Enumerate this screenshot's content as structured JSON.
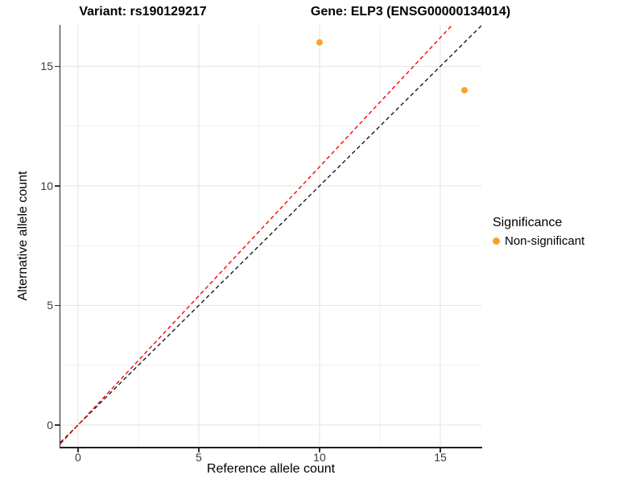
{
  "header": {
    "variant_title": "Variant: rs190129217",
    "gene_title": "Gene: ELP3 (ENSG00000134014)"
  },
  "chart_data": {
    "type": "scatter",
    "x": {
      "label": "Reference allele count",
      "ticks": [
        0,
        5,
        10,
        15
      ],
      "minor_ticks": [
        2.5,
        7.5,
        12.5
      ],
      "range": [
        -0.73,
        16.7
      ]
    },
    "y": {
      "label": "Alternative allele count",
      "ticks": [
        0,
        5,
        10,
        15
      ],
      "minor_ticks": [
        2.5,
        7.5,
        12.5
      ],
      "range": [
        -0.91,
        16.73
      ]
    },
    "points": [
      {
        "x": 10,
        "y": 16,
        "significance": "Non-significant"
      },
      {
        "x": 16,
        "y": 14,
        "significance": "Non-significant"
      }
    ],
    "reference_lines": [
      {
        "name": "identity-line",
        "slope": 1.0,
        "intercept": 0,
        "color": "#1a1a1a",
        "style": "dashed"
      },
      {
        "name": "fitted-line",
        "slope": 1.08,
        "intercept": 0,
        "color": "#ff0000",
        "style": "dashed"
      }
    ],
    "point_color": "#F8A225",
    "point_radius": 4,
    "grid": {
      "major_color": "#e3e3e3",
      "minor_color": "#f0f0f0"
    },
    "legend": {
      "title": "Significance",
      "entries": [
        {
          "label": "Non-significant",
          "color": "#F8A225"
        }
      ]
    }
  }
}
